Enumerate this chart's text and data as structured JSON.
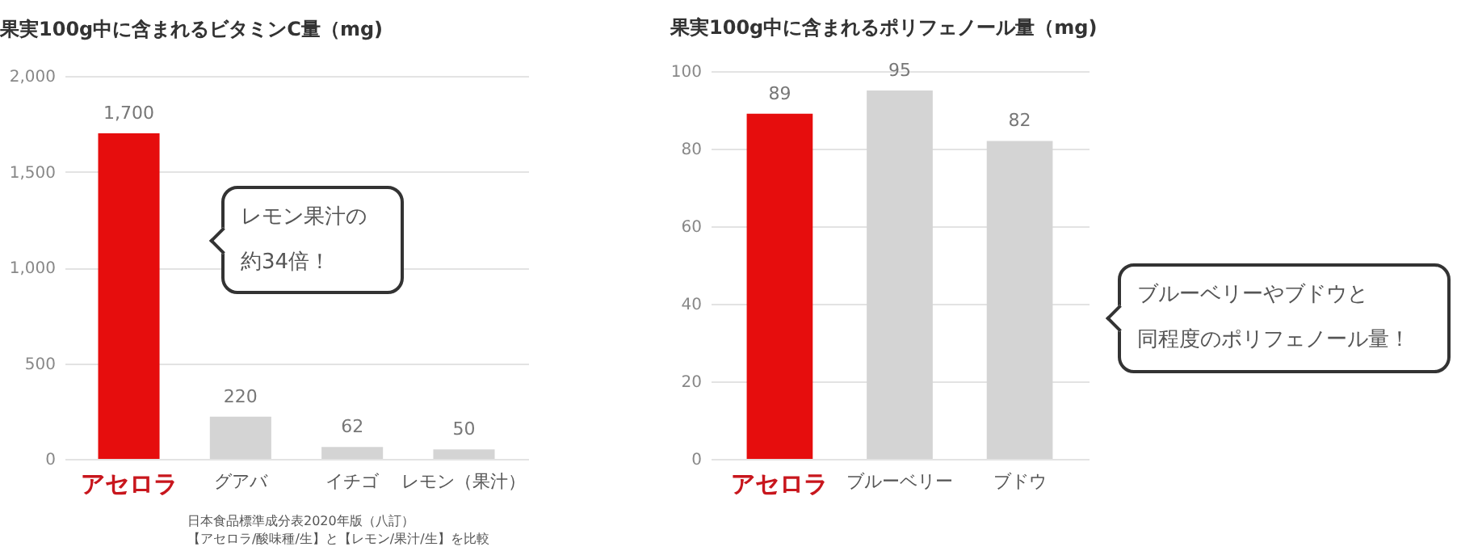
{
  "chart_data": [
    {
      "type": "bar",
      "title": "果実100g中に含まれるビタミンC量（mg)",
      "categories": [
        "アセロラ",
        "グアバ",
        "イチゴ",
        "レモン（果汁）"
      ],
      "values": [
        1700,
        220,
        62,
        50
      ],
      "colors": [
        "#e60d0d",
        "#d4d4d4",
        "#d4d4d4",
        "#d4d4d4"
      ],
      "ylim": [
        0,
        2000
      ],
      "yticks": [
        0,
        500,
        {
          "value": 1000,
          "label": "1,000"
        },
        {
          "value": 1500,
          "label": "1,500"
        },
        {
          "value": 2000,
          "label": "2,000"
        }
      ],
      "grid": "y",
      "value_labels": [
        "1,700",
        "220",
        "62",
        "50"
      ],
      "annotations": [
        "レモン果汁の",
        "約34倍！",
        "日本食品標準成分表2020年版（八訂）",
        "【アセロラ/酸味種/生】と【レモン/果汁/生】を比較"
      ]
    },
    {
      "type": "bar",
      "title": "果実100g中に含まれるポリフェノール量（mg)",
      "categories": [
        "アセロラ",
        "ブルーベリー",
        "ブドウ"
      ],
      "values": [
        89,
        95,
        82
      ],
      "colors": [
        "#e60d0d",
        "#d4d4d4",
        "#d4d4d4"
      ],
      "ylim": [
        0,
        100
      ],
      "yticks": [
        0,
        20,
        40,
        60,
        80,
        100
      ],
      "grid": "y",
      "data_labels": true,
      "annotations": [
        "ブルーベリーやブドウと",
        "同程度のポリフェノール量！"
      ]
    }
  ]
}
